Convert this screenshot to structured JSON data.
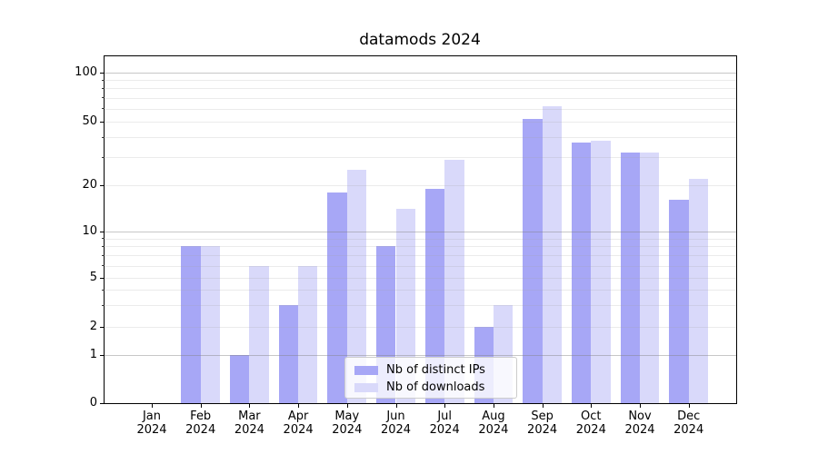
{
  "title": "datamods 2024",
  "chart_data": {
    "type": "bar",
    "title": "datamods 2024",
    "categories": [
      "Jan",
      "Feb",
      "Mar",
      "Apr",
      "May",
      "Jun",
      "Jul",
      "Aug",
      "Sep",
      "Oct",
      "Nov",
      "Dec"
    ],
    "year": "2024",
    "series": [
      {
        "name": "Nb of distinct IPs",
        "color": "#a7a7f6",
        "values": [
          0,
          8,
          1,
          3,
          18,
          8,
          19,
          2,
          52,
          37,
          32,
          16
        ]
      },
      {
        "name": "Nb of downloads",
        "color": "#d9d9fa",
        "values": [
          0,
          8,
          6,
          6,
          25,
          14,
          29,
          3,
          62,
          38,
          32,
          22
        ]
      }
    ],
    "yscale": "symlog",
    "ylim": [
      0,
      130
    ],
    "yticks": [
      0,
      1,
      2,
      5,
      10,
      20,
      50,
      100
    ],
    "ytick_labels": [
      "0",
      "1",
      "2",
      "5",
      "10",
      "20",
      "50",
      "100"
    ],
    "major_grid_values": [
      1,
      10,
      100
    ],
    "minor_grid_values": [
      2,
      3,
      4,
      5,
      6,
      7,
      8,
      9,
      20,
      30,
      40,
      50,
      60,
      70,
      80,
      90
    ],
    "grid": true,
    "legend": {
      "position": "lower center",
      "labels": [
        "Nb of distinct IPs",
        "Nb of downloads"
      ]
    },
    "colors": {
      "bar_distinct_ips": "#a7a7f6",
      "bar_downloads": "#d9d9fa",
      "major_grid": "#c3c3c3",
      "minor_grid": "#e8e8e8",
      "axis": "#000000",
      "background": "#ffffff"
    }
  }
}
